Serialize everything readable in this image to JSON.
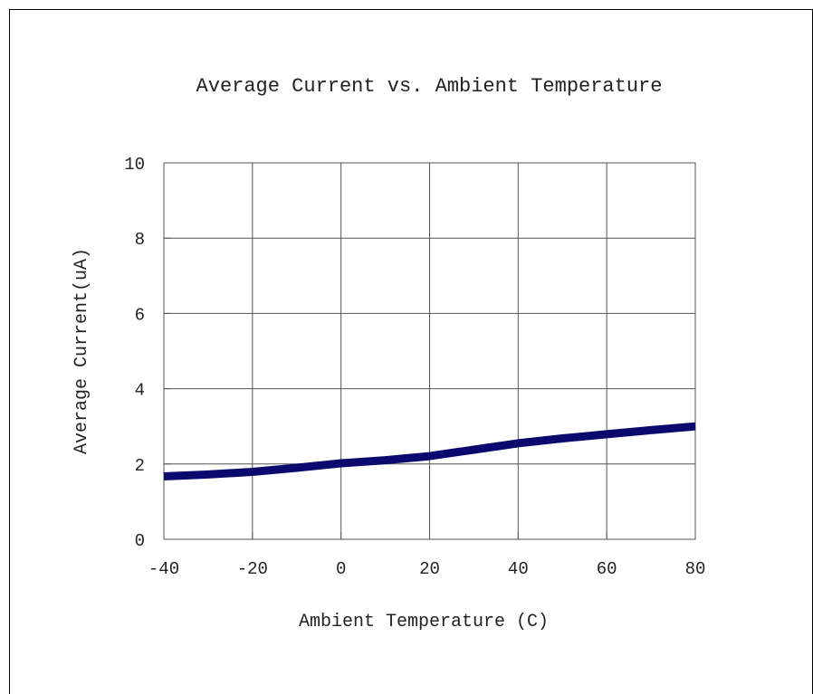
{
  "chart_data": {
    "type": "line",
    "title": "Average Current vs. Ambient Temperature",
    "xlabel": "Ambient Temperature (C)",
    "ylabel": "Average Current(uA)",
    "xlim": [
      -40,
      80
    ],
    "ylim": [
      0,
      10
    ],
    "x_ticks": [
      -40,
      -20,
      0,
      20,
      40,
      60,
      80
    ],
    "y_ticks": [
      0,
      2,
      4,
      6,
      8,
      10
    ],
    "grid": true,
    "series": [
      {
        "color": "#0a0a6e",
        "x": [
          -40,
          -30,
          -20,
          -10,
          0,
          10,
          20,
          30,
          40,
          50,
          60,
          70,
          80
        ],
        "y": [
          1.67,
          1.72,
          1.79,
          1.9,
          2.02,
          2.1,
          2.21,
          2.38,
          2.55,
          2.68,
          2.79,
          2.9,
          3.0
        ]
      }
    ]
  }
}
